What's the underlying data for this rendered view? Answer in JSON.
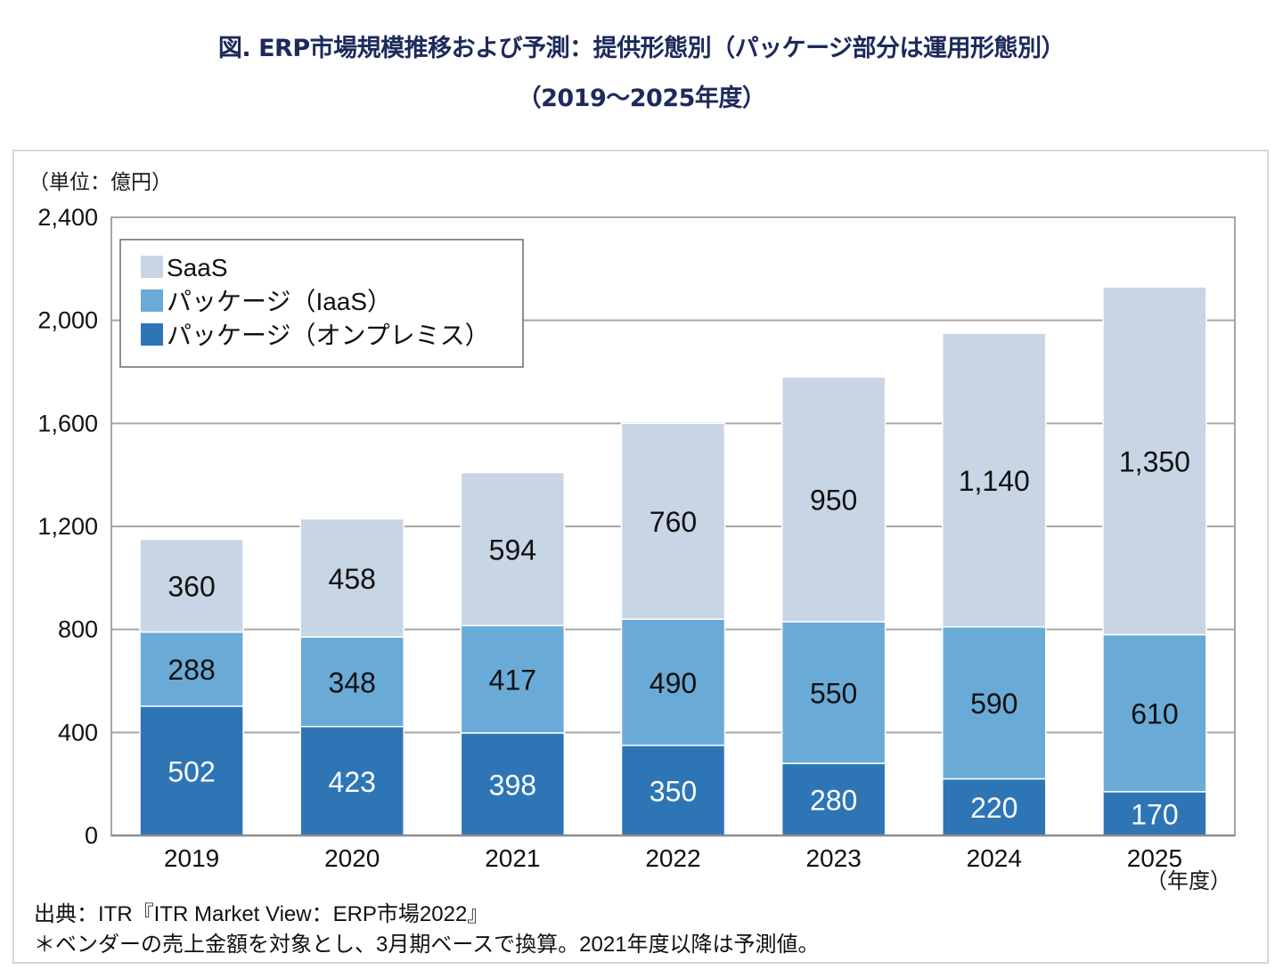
{
  "title_line1": "図. ERP市場規模推移および予測：提供形態別（パッケージ部分は運用形態別）",
  "title_line2": "（2019〜2025年度）",
  "unit_label": "（単位：億円）",
  "x_unit_label": "（年度）",
  "source": "出典：ITR『ITR Market View：ERP市場2022』",
  "footnote": "＊ベンダーの売上金額を対象とし、3月期ベースで換算。2021年度以降は予測値。",
  "colors": {
    "saas": "#c8d5e5",
    "package_iaas": "#6aaad6",
    "package_onprem": "#2e75b6"
  },
  "chart_data": {
    "type": "bar",
    "stacked": true,
    "title": "ERP市場規模推移および予測：提供形態別（パッケージ部分は運用形態別）（2019〜2025年度）",
    "xlabel": "（年度）",
    "ylabel": "（単位：億円）",
    "categories": [
      "2019",
      "2020",
      "2021",
      "2022",
      "2023",
      "2024",
      "2025"
    ],
    "series": [
      {
        "name": "パッケージ（オンプレミス）",
        "key": "package_onprem",
        "values": [
          502,
          423,
          398,
          350,
          280,
          220,
          170
        ],
        "labels": [
          "502",
          "423",
          "398",
          "350",
          "280",
          "220",
          "170"
        ],
        "label_color": "#ffffff"
      },
      {
        "name": "パッケージ（IaaS）",
        "key": "package_iaas",
        "values": [
          288,
          348,
          417,
          490,
          550,
          590,
          610
        ],
        "labels": [
          "288",
          "348",
          "417",
          "490",
          "550",
          "590",
          "610"
        ],
        "label_color": "#111111"
      },
      {
        "name": "SaaS",
        "key": "saas",
        "values": [
          360,
          458,
          594,
          760,
          950,
          1140,
          1350
        ],
        "labels": [
          "360",
          "458",
          "594",
          "760",
          "950",
          "1,140",
          "1,350"
        ],
        "label_color": "#111111"
      }
    ],
    "legend": {
      "placement": "top-left",
      "entries": [
        "SaaS",
        "パッケージ（IaaS）",
        "パッケージ（オンプレミス）"
      ]
    },
    "ylim": [
      0,
      2400
    ],
    "yticks": [
      0,
      400,
      800,
      1200,
      1600,
      2000,
      2400
    ],
    "ytick_labels": [
      "0",
      "400",
      "800",
      "1,200",
      "1,600",
      "2,000",
      "2,400"
    ],
    "grid": true
  }
}
